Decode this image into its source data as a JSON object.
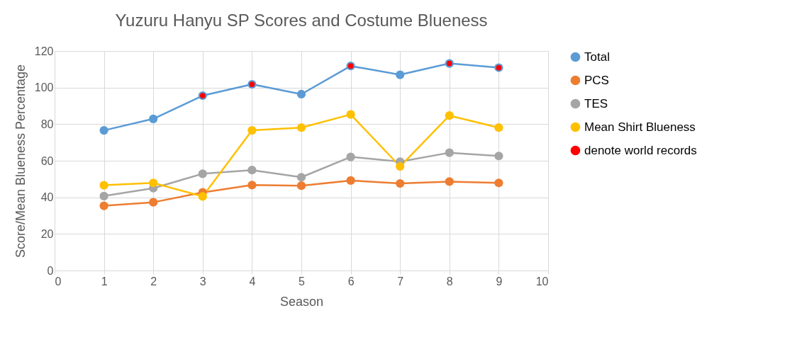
{
  "chart_data": {
    "type": "line",
    "title": "Yuzuru Hanyu SP Scores and Costume Blueness",
    "xlabel": "Season",
    "ylabel": "Score/Mean Blueness Percentage",
    "x": [
      1,
      2,
      3,
      4,
      5,
      6,
      7,
      8,
      9
    ],
    "series": [
      {
        "name": "Total",
        "color": "#5b9bd5",
        "values": [
          76.6,
          82.9,
          95.6,
          101.8,
          96.4,
          111.8,
          107.0,
          113.2,
          110.9
        ]
      },
      {
        "name": "PCS",
        "color": "#ed7d31",
        "values": [
          35.4,
          37.3,
          42.7,
          46.7,
          46.4,
          49.2,
          47.6,
          48.6,
          47.9
        ]
      },
      {
        "name": "TES",
        "color": "#a5a5a5",
        "values": [
          40.7,
          45.0,
          52.9,
          54.9,
          51.0,
          62.1,
          59.5,
          64.4,
          62.6
        ]
      },
      {
        "name": "Mean Shirt Blueness",
        "color": "#ffc000",
        "values": [
          46.6,
          47.9,
          40.5,
          76.6,
          78.1,
          85.3,
          56.9,
          84.7,
          78.1
        ]
      },
      {
        "name": "denote world records",
        "type": "scatter",
        "color": "#ff0000",
        "values": [
          null,
          null,
          95.6,
          101.8,
          null,
          111.8,
          null,
          113.2,
          110.9
        ]
      }
    ],
    "xlim": [
      0,
      10
    ],
    "xticks": [
      0,
      1,
      2,
      3,
      4,
      5,
      6,
      7,
      8,
      9,
      10
    ],
    "ylim": [
      0,
      120
    ],
    "yticks": [
      0,
      20,
      40,
      60,
      80,
      100,
      120
    ],
    "grid": true,
    "legend": "right",
    "marker": "circle",
    "line_style": "solid"
  }
}
